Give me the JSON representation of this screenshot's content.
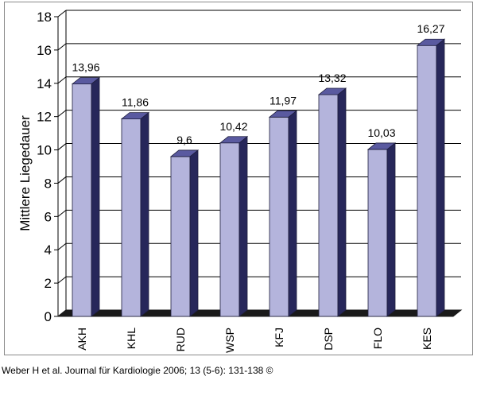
{
  "citation": "Weber H et al. Journal für Kardiologie 2006; 13 (5-6): 131-138 ©",
  "colors": {
    "bar_front": "#b4b4dc",
    "bar_side": "#27275a",
    "bar_top": "#5a5aa0",
    "floor": "#1a1a1a",
    "grid": "#000000",
    "frame": "#8a8a8a"
  },
  "chart_data": {
    "type": "bar",
    "title": "",
    "xlabel": "",
    "ylabel": "Mittlere Liegedauer",
    "ylim": [
      0,
      18
    ],
    "yticks": [
      "0",
      "2",
      "4",
      "6",
      "8",
      "10",
      "12",
      "14",
      "16",
      "18"
    ],
    "grid": true,
    "legend": "none",
    "categories": [
      "AKH",
      "KHL",
      "RUD",
      "WSP",
      "KFJ",
      "DSP",
      "FLO",
      "KES"
    ],
    "values": [
      13.96,
      11.86,
      9.6,
      10.42,
      11.97,
      13.32,
      10.03,
      16.27
    ],
    "value_labels": [
      "13,96",
      "11,86",
      "9,6",
      "10,42",
      "11,97",
      "13,32",
      "10,03",
      "16,27"
    ]
  }
}
